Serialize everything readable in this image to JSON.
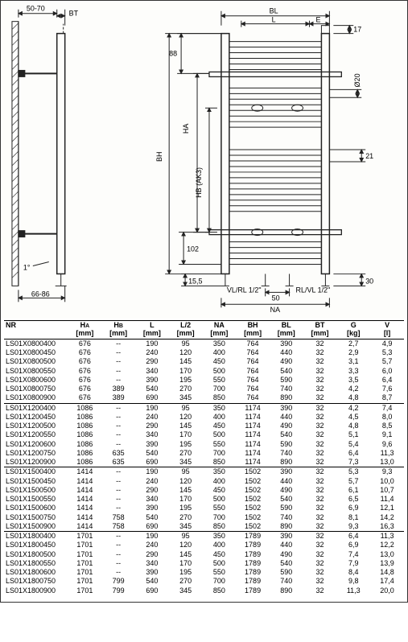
{
  "diagram": {
    "left_top_dim": "50-70",
    "bt_label": "BT",
    "left_bottom_angle_note": "1°",
    "left_bottom_dim": "66-86",
    "top_88": "88",
    "bl_label": "BL",
    "l_label": "L",
    "e_label": "E",
    "d17": "17",
    "d20": "Ø20",
    "d21": "21",
    "ha_label": "HA",
    "hb_label": "HB (AK3)",
    "bh_label": "BH",
    "d102": "102",
    "d155": "15,5",
    "d50": "50",
    "d30": "30",
    "vlrl1": "VL/RL 1/2\"",
    "vlrl2": "RL/VL 1/2\"",
    "na_label": "NA",
    "colors": {
      "line": "#222222",
      "hatch": "#333333",
      "fill": "#ffffff"
    }
  },
  "table": {
    "columns": [
      {
        "key": "nr",
        "h1": "NR",
        "h2": ""
      },
      {
        "key": "ha",
        "h1": "H",
        "sub": "A",
        "h2": "[mm]"
      },
      {
        "key": "hb",
        "h1": "H",
        "sub": "B",
        "h2": "[mm]"
      },
      {
        "key": "l",
        "h1": "L",
        "h2": "[mm]"
      },
      {
        "key": "l2",
        "h1": "L/2",
        "h2": "[mm]"
      },
      {
        "key": "na",
        "h1": "NA",
        "h2": "[mm]"
      },
      {
        "key": "bh",
        "h1": "BH",
        "h2": "[mm]"
      },
      {
        "key": "bl",
        "h1": "BL",
        "h2": "[mm]"
      },
      {
        "key": "bt",
        "h1": "BT",
        "h2": "[mm]"
      },
      {
        "key": "g",
        "h1": "G",
        "h2": "[kg]"
      },
      {
        "key": "v",
        "h1": "V",
        "h2": "[l]"
      }
    ],
    "groups": [
      [
        [
          "LS01X0800400",
          "676",
          "--",
          "190",
          "95",
          "350",
          "764",
          "390",
          "32",
          "2,7",
          "4,9"
        ],
        [
          "LS01X0800450",
          "676",
          "--",
          "240",
          "120",
          "400",
          "764",
          "440",
          "32",
          "2,9",
          "5,3"
        ],
        [
          "LS01X0800500",
          "676",
          "--",
          "290",
          "145",
          "450",
          "764",
          "490",
          "32",
          "3,1",
          "5,7"
        ],
        [
          "LS01X0800550",
          "676",
          "--",
          "340",
          "170",
          "500",
          "764",
          "540",
          "32",
          "3,3",
          "6,0"
        ],
        [
          "LS01X0800600",
          "676",
          "--",
          "390",
          "195",
          "550",
          "764",
          "590",
          "32",
          "3,5",
          "6,4"
        ],
        [
          "LS01X0800750",
          "676",
          "389",
          "540",
          "270",
          "700",
          "764",
          "740",
          "32",
          "4,2",
          "7,6"
        ],
        [
          "LS01X0800900",
          "676",
          "389",
          "690",
          "345",
          "850",
          "764",
          "890",
          "32",
          "4,8",
          "8,7"
        ]
      ],
      [
        [
          "LS01X1200400",
          "1086",
          "--",
          "190",
          "95",
          "350",
          "1174",
          "390",
          "32",
          "4,2",
          "7,4"
        ],
        [
          "LS01X1200450",
          "1086",
          "--",
          "240",
          "120",
          "400",
          "1174",
          "440",
          "32",
          "4,5",
          "8,0"
        ],
        [
          "LS01X1200500",
          "1086",
          "--",
          "290",
          "145",
          "450",
          "1174",
          "490",
          "32",
          "4,8",
          "8,5"
        ],
        [
          "LS01X1200550",
          "1086",
          "--",
          "340",
          "170",
          "500",
          "1174",
          "540",
          "32",
          "5,1",
          "9,1"
        ],
        [
          "LS01X1200600",
          "1086",
          "--",
          "390",
          "195",
          "550",
          "1174",
          "590",
          "32",
          "5,4",
          "9,6"
        ],
        [
          "LS01X1200750",
          "1086",
          "635",
          "540",
          "270",
          "700",
          "1174",
          "740",
          "32",
          "6,4",
          "11,3"
        ],
        [
          "LS01X1200900",
          "1086",
          "635",
          "690",
          "345",
          "850",
          "1174",
          "890",
          "32",
          "7,3",
          "13,0"
        ]
      ],
      [
        [
          "LS01X1500400",
          "1414",
          "--",
          "190",
          "95",
          "350",
          "1502",
          "390",
          "32",
          "5,3",
          "9,3"
        ],
        [
          "LS01X1500450",
          "1414",
          "--",
          "240",
          "120",
          "400",
          "1502",
          "440",
          "32",
          "5,7",
          "10,0"
        ],
        [
          "LS01X1500500",
          "1414",
          "--",
          "290",
          "145",
          "450",
          "1502",
          "490",
          "32",
          "6,1",
          "10,7"
        ],
        [
          "LS01X1500550",
          "1414",
          "--",
          "340",
          "170",
          "500",
          "1502",
          "540",
          "32",
          "6,5",
          "11,4"
        ],
        [
          "LS01X1500600",
          "1414",
          "--",
          "390",
          "195",
          "550",
          "1502",
          "590",
          "32",
          "6,9",
          "12,1"
        ],
        [
          "LS01X1500750",
          "1414",
          "758",
          "540",
          "270",
          "700",
          "1502",
          "740",
          "32",
          "8,1",
          "14,2"
        ],
        [
          "LS01X1500900",
          "1414",
          "758",
          "690",
          "345",
          "850",
          "1502",
          "890",
          "32",
          "9,3",
          "16,3"
        ]
      ],
      [
        [
          "LS01X1800400",
          "1701",
          "--",
          "190",
          "95",
          "350",
          "1789",
          "390",
          "32",
          "6,4",
          "11,3"
        ],
        [
          "LS01X1800450",
          "1701",
          "--",
          "240",
          "120",
          "400",
          "1789",
          "440",
          "32",
          "6,9",
          "12,2"
        ],
        [
          "LS01X1800500",
          "1701",
          "--",
          "290",
          "145",
          "450",
          "1789",
          "490",
          "32",
          "7,4",
          "13,0"
        ],
        [
          "LS01X1800550",
          "1701",
          "--",
          "340",
          "170",
          "500",
          "1789",
          "540",
          "32",
          "7,9",
          "13,9"
        ],
        [
          "LS01X1800600",
          "1701",
          "--",
          "390",
          "195",
          "550",
          "1789",
          "590",
          "32",
          "8,4",
          "14,8"
        ],
        [
          "LS01X1800750",
          "1701",
          "799",
          "540",
          "270",
          "700",
          "1789",
          "740",
          "32",
          "9,8",
          "17,4"
        ],
        [
          "LS01X1800900",
          "1701",
          "799",
          "690",
          "345",
          "850",
          "1789",
          "890",
          "32",
          "11,3",
          "20,0"
        ]
      ]
    ]
  }
}
